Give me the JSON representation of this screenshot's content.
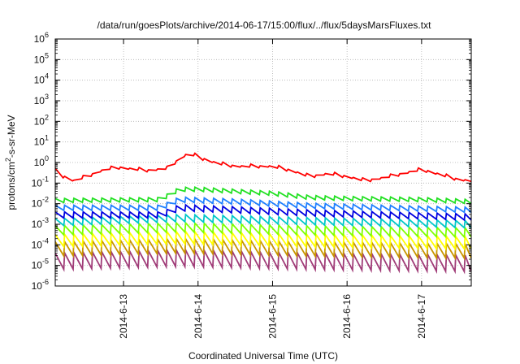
{
  "chart_data": {
    "type": "line",
    "title": "/data/run/goesPlots/archive/2014-06-17/15:00/flux/../flux/5daysMarsFluxes.txt",
    "xlabel": "Coordinated Universal Time (UTC)",
    "ylabel": {
      "prefix": "protons/cm",
      "sup": "2",
      "suffix": "-s-sr-MeV"
    },
    "y_scale": "log",
    "ylim_exponents": [
      -6,
      6
    ],
    "y_tick_labels": [
      {
        "base": "10",
        "exp": "-6"
      },
      {
        "base": "10",
        "exp": "-5"
      },
      {
        "base": "10",
        "exp": "-4"
      },
      {
        "base": "10",
        "exp": "-3"
      },
      {
        "base": "10",
        "exp": "-2"
      },
      {
        "base": "10",
        "exp": "-1"
      },
      {
        "base": "10",
        "exp": "0"
      },
      {
        "base": "10",
        "exp": "1"
      },
      {
        "base": "10",
        "exp": "2"
      },
      {
        "base": "10",
        "exp": "3"
      },
      {
        "base": "10",
        "exp": "4"
      },
      {
        "base": "10",
        "exp": "5"
      },
      {
        "base": "10",
        "exp": "6"
      }
    ],
    "xlim": [
      "2014-06-12T02:00",
      "2014-06-17T16:00"
    ],
    "x_tick_labels": [
      "2014-6-13",
      "2014-6-14",
      "2014-6-15",
      "2014-6-16",
      "2014-6-17"
    ],
    "x_tick_dates": [
      "2014-06-13T00:00",
      "2014-06-14T00:00",
      "2014-06-15T00:00",
      "2014-06-16T00:00",
      "2014-06-17T00:00"
    ],
    "grid": true,
    "legend": "none",
    "series": [
      {
        "color": "#ff0000",
        "pattern": "ramp",
        "period_hours": 3,
        "points_log10": [
          [
            "2014-06-12T02:00",
            -0.4
          ],
          [
            "2014-06-12T04:00",
            -0.65
          ],
          [
            "2014-06-12T08:00",
            -0.9
          ],
          [
            "2014-06-12T12:00",
            -0.7
          ],
          [
            "2014-06-12T18:00",
            -0.35
          ],
          [
            "2014-06-12T22:00",
            -0.25
          ],
          [
            "2014-06-13T04:00",
            -0.35
          ],
          [
            "2014-06-13T08:00",
            -0.4
          ],
          [
            "2014-06-13T14:00",
            -0.3
          ],
          [
            "2014-06-13T18:00",
            0.15
          ],
          [
            "2014-06-13T21:00",
            0.45
          ],
          [
            "2014-06-14T01:00",
            0.2
          ],
          [
            "2014-06-14T06:00",
            -0.05
          ],
          [
            "2014-06-14T12:00",
            -0.2
          ],
          [
            "2014-06-14T18:00",
            -0.2
          ],
          [
            "2014-06-15T00:00",
            -0.2
          ],
          [
            "2014-06-15T06:00",
            -0.4
          ],
          [
            "2014-06-15T12:00",
            -0.7
          ],
          [
            "2014-06-15T18:00",
            -0.55
          ],
          [
            "2014-06-16T00:00",
            -0.7
          ],
          [
            "2014-06-16T06:00",
            -0.9
          ],
          [
            "2014-06-16T12:00",
            -0.75
          ],
          [
            "2014-06-16T18:00",
            -0.55
          ],
          [
            "2014-06-17T00:00",
            -0.35
          ],
          [
            "2014-06-17T06:00",
            -0.6
          ],
          [
            "2014-06-17T12:00",
            -0.85
          ],
          [
            "2014-06-17T16:00",
            -0.9
          ]
        ]
      },
      {
        "color": "#22e022",
        "pattern": "sawtooth",
        "period_hours": 3,
        "amplitude_log10": 0.2,
        "points_log10": [
          [
            "2014-06-12T02:00",
            -1.85
          ],
          [
            "2014-06-13T12:00",
            -1.8
          ],
          [
            "2014-06-13T18:00",
            -1.3
          ],
          [
            "2014-06-14T00:00",
            -1.3
          ],
          [
            "2014-06-14T12:00",
            -1.4
          ],
          [
            "2014-06-15T00:00",
            -1.5
          ],
          [
            "2014-06-15T12:00",
            -1.7
          ],
          [
            "2014-06-16T00:00",
            -1.75
          ],
          [
            "2014-06-17T00:00",
            -1.8
          ],
          [
            "2014-06-17T16:00",
            -1.9
          ]
        ]
      },
      {
        "color": "#1e7fff",
        "pattern": "sawtooth",
        "period_hours": 3,
        "amplitude_log10": 0.25,
        "points_log10": [
          [
            "2014-06-12T02:00",
            -2.2
          ],
          [
            "2014-06-13T12:00",
            -2.2
          ],
          [
            "2014-06-13T18:00",
            -1.8
          ],
          [
            "2014-06-14T12:00",
            -1.9
          ],
          [
            "2014-06-15T12:00",
            -2.1
          ],
          [
            "2014-06-16T12:00",
            -2.2
          ],
          [
            "2014-06-17T16:00",
            -2.3
          ]
        ]
      },
      {
        "color": "#0000e0",
        "pattern": "sawtooth",
        "period_hours": 3,
        "amplitude_log10": 0.3,
        "points_log10": [
          [
            "2014-06-12T02:00",
            -2.55
          ],
          [
            "2014-06-13T12:00",
            -2.55
          ],
          [
            "2014-06-13T18:00",
            -2.2
          ],
          [
            "2014-06-14T12:00",
            -2.3
          ],
          [
            "2014-06-15T12:00",
            -2.45
          ],
          [
            "2014-06-16T12:00",
            -2.55
          ],
          [
            "2014-06-17T16:00",
            -2.65
          ]
        ]
      },
      {
        "color": "#00c8c8",
        "pattern": "sawtooth",
        "period_hours": 3,
        "amplitude_log10": 0.35,
        "points_log10": [
          [
            "2014-06-12T02:00",
            -2.9
          ],
          [
            "2014-06-13T18:00",
            -2.7
          ],
          [
            "2014-06-15T12:00",
            -2.85
          ],
          [
            "2014-06-17T16:00",
            -3.0
          ]
        ]
      },
      {
        "color": "#80ff00",
        "pattern": "sawtooth",
        "period_hours": 3,
        "amplitude_log10": 0.45,
        "points_log10": [
          [
            "2014-06-12T02:00",
            -3.3
          ],
          [
            "2014-06-13T18:00",
            -3.15
          ],
          [
            "2014-06-15T12:00",
            -3.3
          ],
          [
            "2014-06-17T16:00",
            -3.4
          ]
        ]
      },
      {
        "color": "#ffff00",
        "pattern": "sawtooth",
        "period_hours": 3,
        "amplitude_log10": 0.6,
        "points_log10": [
          [
            "2014-06-12T02:00",
            -3.8
          ],
          [
            "2014-06-13T18:00",
            -3.65
          ],
          [
            "2014-06-15T12:00",
            -3.8
          ],
          [
            "2014-06-17T16:00",
            -3.9
          ]
        ]
      },
      {
        "color": "#c89600",
        "pattern": "sawtooth",
        "period_hours": 3,
        "amplitude_log10": 0.7,
        "points_log10": [
          [
            "2014-06-12T02:00",
            -4.2
          ],
          [
            "2014-06-13T18:00",
            -4.05
          ],
          [
            "2014-06-15T12:00",
            -4.2
          ],
          [
            "2014-06-17T16:00",
            -4.3
          ]
        ]
      },
      {
        "color": "#a03c78",
        "pattern": "sawtooth",
        "period_hours": 3,
        "amplitude_log10": 0.8,
        "points_log10": [
          [
            "2014-06-12T02:00",
            -4.8
          ],
          [
            "2014-06-13T18:00",
            -4.65
          ],
          [
            "2014-06-15T12:00",
            -4.8
          ],
          [
            "2014-06-17T16:00",
            -4.9
          ]
        ]
      }
    ]
  }
}
